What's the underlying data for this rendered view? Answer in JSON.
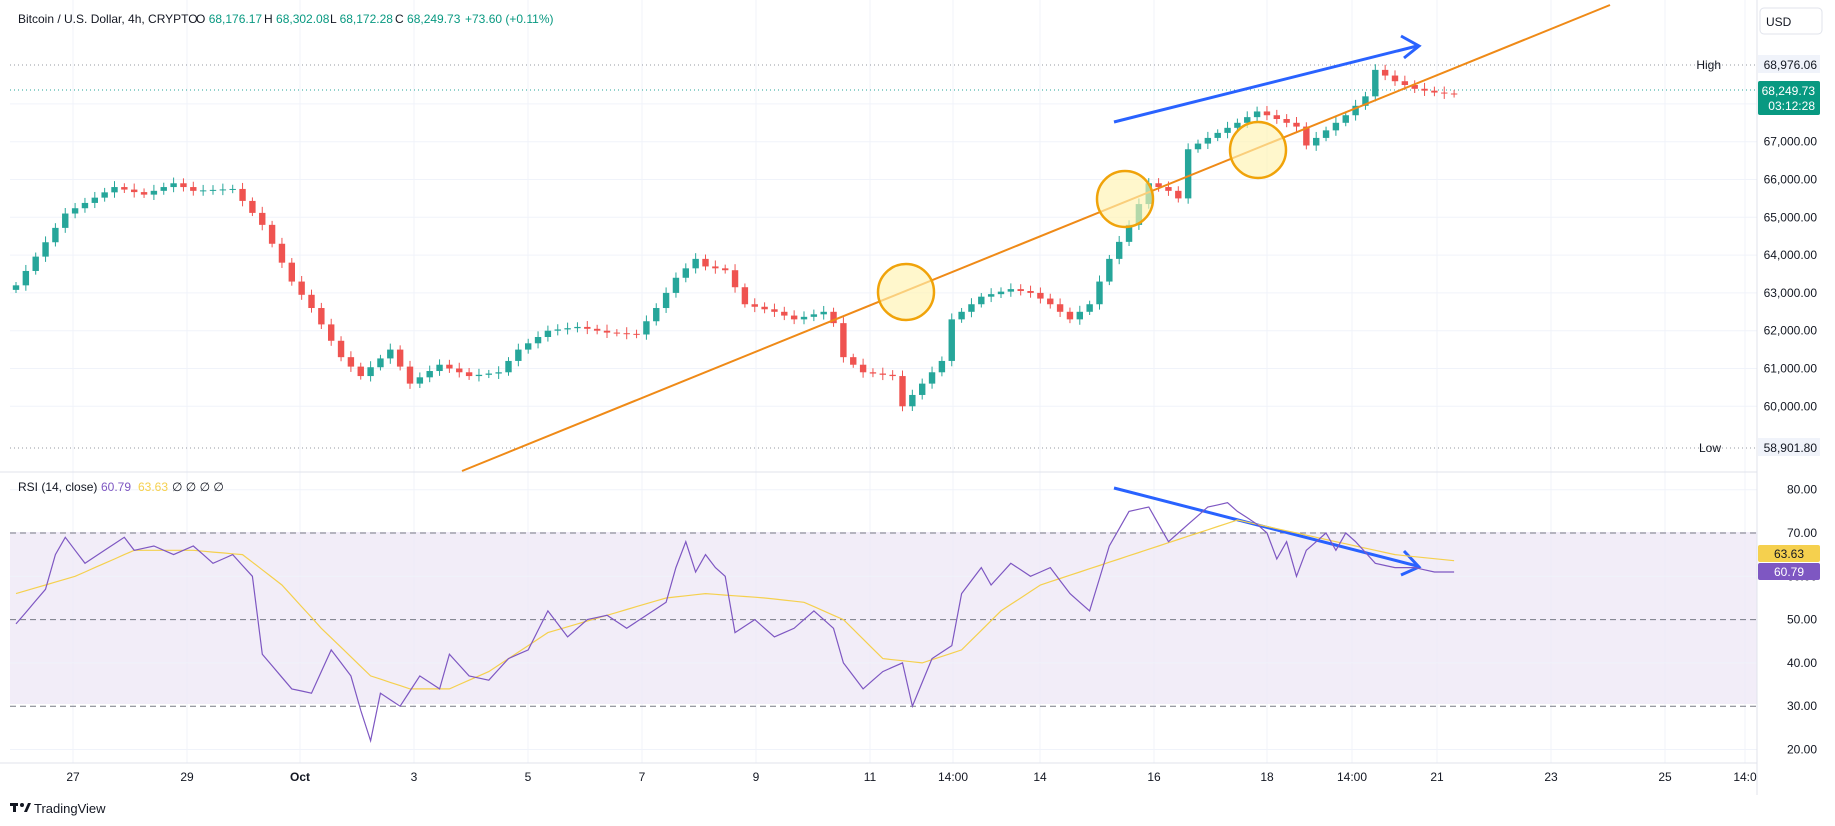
{
  "header": {
    "symbol": "Bitcoin / U.S. Dollar, 4h, CRYPTO",
    "o_label": "O",
    "o_value": "68,176.17",
    "h_label": "H",
    "h_value": "68,302.08",
    "l_label": "L",
    "l_value": "68,172.28",
    "c_label": "C",
    "c_value": "68,249.73",
    "change": "+73.60 (+0.11%)"
  },
  "currency_button": "USD",
  "price_tags": {
    "high_label": "High",
    "high_value": "68,976.06",
    "low_label": "Low",
    "low_value": "58,901.80",
    "last_value": "68,249.73",
    "countdown": "03:12:28"
  },
  "rsi_legend": {
    "name": "RSI (14, close)",
    "rsi_value": "60.79",
    "ma_value": "63.63",
    "empties": "∅ ∅ ∅ ∅"
  },
  "brand": "TradingView",
  "colors": {
    "up": "#26a69a",
    "down": "#ef5350",
    "rsi": "#7e57c2",
    "rsi_ma": "#f5d04e",
    "trendline": "#ef8a17",
    "arrow": "#2962ff",
    "circle_stroke": "#f0a30a",
    "circle_fill": "#fff3b0",
    "last_price_tag": "#089981"
  },
  "chart_data": [
    {
      "type": "candlestick",
      "title": "Bitcoin / U.S. Dollar, 4h, CRYPTO",
      "ylim": [
        58600,
        69900
      ],
      "y_ticks": [
        "60,000.00",
        "61,000.00",
        "62,000.00",
        "63,000.00",
        "64,000.00",
        "65,000.00",
        "66,000.00",
        "67,000.00"
      ],
      "x_ticks": [
        "27",
        "29",
        "Oct",
        "3",
        "5",
        "7",
        "9",
        "11",
        "14:00",
        "14",
        "16",
        "18",
        "14:00",
        "21",
        "23",
        "25",
        "14:0"
      ],
      "anchors": [
        [
          0,
          63200
        ],
        [
          5,
          65100
        ],
        [
          10,
          65800
        ],
        [
          13,
          65600
        ],
        [
          16,
          65900
        ],
        [
          18,
          65700
        ],
        [
          22,
          65750
        ],
        [
          25,
          64800
        ],
        [
          28,
          63300
        ],
        [
          30,
          62600
        ],
        [
          33,
          61300
        ],
        [
          35,
          60800
        ],
        [
          38,
          61500
        ],
        [
          40,
          60600
        ],
        [
          43,
          61100
        ],
        [
          46,
          60800
        ],
        [
          49,
          60900
        ],
        [
          51,
          61500
        ],
        [
          54,
          62000
        ],
        [
          57,
          62100
        ],
        [
          60,
          61950
        ],
        [
          63,
          61900
        ],
        [
          65,
          62600
        ],
        [
          67,
          63400
        ],
        [
          69,
          63900
        ],
        [
          70,
          63700
        ],
        [
          72,
          63600
        ],
        [
          74,
          62700
        ],
        [
          77,
          62500
        ],
        [
          79,
          62300
        ],
        [
          82,
          62500
        ],
        [
          83,
          62200
        ],
        [
          84,
          61300
        ],
        [
          86,
          60900
        ],
        [
          89,
          60800
        ],
        [
          90,
          60000
        ],
        [
          92,
          60600
        ],
        [
          94,
          61200
        ],
        [
          95,
          62300
        ],
        [
          98,
          62900
        ],
        [
          101,
          63100
        ],
        [
          103,
          63000
        ],
        [
          105,
          62700
        ],
        [
          107,
          62300
        ],
        [
          109,
          62700
        ],
        [
          111,
          63900
        ],
        [
          113,
          64800
        ],
        [
          115,
          65900
        ],
        [
          117,
          65700
        ],
        [
          118,
          65500
        ],
        [
          119,
          66800
        ],
        [
          121,
          67100
        ],
        [
          124,
          67500
        ],
        [
          126,
          67800
        ],
        [
          128,
          67600
        ],
        [
          130,
          67400
        ],
        [
          131,
          66900
        ],
        [
          133,
          67300
        ],
        [
          135,
          67700
        ],
        [
          137,
          68200
        ],
        [
          138,
          68900
        ],
        [
          140,
          68600
        ],
        [
          142,
          68400
        ],
        [
          144,
          68300
        ],
        [
          146,
          68250
        ]
      ],
      "last_price": 68249.73,
      "high": 68976.06,
      "low": 58901.8
    },
    {
      "type": "line",
      "title": "RSI (14, close)",
      "ylim": [
        17,
        83
      ],
      "y_ticks": [
        "20.00",
        "30.00",
        "40.00",
        "50.00",
        "60.00",
        "70.00",
        "80.00"
      ],
      "bands": {
        "upper": 70,
        "middle": 50,
        "lower": 30
      },
      "series": [
        {
          "name": "RSI",
          "anchors": [
            [
              0,
              49
            ],
            [
              3,
              57
            ],
            [
              4,
              65
            ],
            [
              5,
              69
            ],
            [
              7,
              63
            ],
            [
              9,
              66
            ],
            [
              11,
              69
            ],
            [
              12,
              66
            ],
            [
              14,
              67
            ],
            [
              16,
              65
            ],
            [
              18,
              67
            ],
            [
              20,
              63
            ],
            [
              22,
              65
            ],
            [
              24,
              60
            ],
            [
              25,
              42
            ],
            [
              28,
              34
            ],
            [
              30,
              33
            ],
            [
              32,
              43
            ],
            [
              34,
              37
            ],
            [
              35,
              29
            ],
            [
              36,
              22
            ],
            [
              37,
              33
            ],
            [
              39,
              30
            ],
            [
              41,
              37
            ],
            [
              43,
              34
            ],
            [
              44,
              42
            ],
            [
              46,
              37
            ],
            [
              48,
              36
            ],
            [
              50,
              41
            ],
            [
              52,
              43
            ],
            [
              54,
              52
            ],
            [
              56,
              46
            ],
            [
              58,
              50
            ],
            [
              60,
              51
            ],
            [
              62,
              48
            ],
            [
              64,
              51
            ],
            [
              66,
              54
            ],
            [
              67,
              62
            ],
            [
              68,
              68
            ],
            [
              69,
              61
            ],
            [
              70,
              65
            ],
            [
              71,
              62
            ],
            [
              72,
              60
            ],
            [
              73,
              47
            ],
            [
              75,
              50
            ],
            [
              77,
              46
            ],
            [
              79,
              48
            ],
            [
              81,
              52
            ],
            [
              83,
              48
            ],
            [
              84,
              40
            ],
            [
              86,
              34
            ],
            [
              88,
              38
            ],
            [
              90,
              40
            ],
            [
              91,
              30
            ],
            [
              93,
              41
            ],
            [
              95,
              44
            ],
            [
              96,
              56
            ],
            [
              98,
              62
            ],
            [
              99,
              58
            ],
            [
              101,
              63
            ],
            [
              103,
              60
            ],
            [
              105,
              62
            ],
            [
              107,
              56
            ],
            [
              109,
              52
            ],
            [
              111,
              67
            ],
            [
              113,
              75
            ],
            [
              115,
              76
            ],
            [
              117,
              68
            ],
            [
              119,
              72
            ],
            [
              121,
              76
            ],
            [
              123,
              77
            ],
            [
              124,
              75
            ],
            [
              126,
              72
            ],
            [
              127,
              70
            ],
            [
              128,
              64
            ],
            [
              129,
              68
            ],
            [
              130,
              60
            ],
            [
              131,
              66
            ],
            [
              133,
              70
            ],
            [
              134,
              66
            ],
            [
              135,
              70
            ],
            [
              136,
              68
            ],
            [
              138,
              63
            ],
            [
              140,
              62
            ],
            [
              142,
              62
            ],
            [
              144,
              61
            ],
            [
              146,
              61
            ]
          ]
        },
        {
          "name": "RSI-based MA",
          "anchors": [
            [
              0,
              56
            ],
            [
              6,
              60
            ],
            [
              12,
              66
            ],
            [
              18,
              66
            ],
            [
              23,
              65
            ],
            [
              27,
              58
            ],
            [
              31,
              48
            ],
            [
              36,
              37
            ],
            [
              40,
              34
            ],
            [
              44,
              34
            ],
            [
              48,
              38
            ],
            [
              54,
              47
            ],
            [
              60,
              51
            ],
            [
              66,
              55
            ],
            [
              70,
              56
            ],
            [
              76,
              55
            ],
            [
              80,
              54
            ],
            [
              84,
              50
            ],
            [
              88,
              41
            ],
            [
              92,
              40
            ],
            [
              96,
              43
            ],
            [
              100,
              52
            ],
            [
              104,
              58
            ],
            [
              108,
              61
            ],
            [
              112,
              64
            ],
            [
              116,
              67
            ],
            [
              120,
              70
            ],
            [
              124,
              73
            ],
            [
              128,
              71
            ],
            [
              132,
              69
            ],
            [
              136,
              67
            ],
            [
              140,
              65
            ],
            [
              146,
              63.6
            ]
          ]
        }
      ]
    }
  ]
}
